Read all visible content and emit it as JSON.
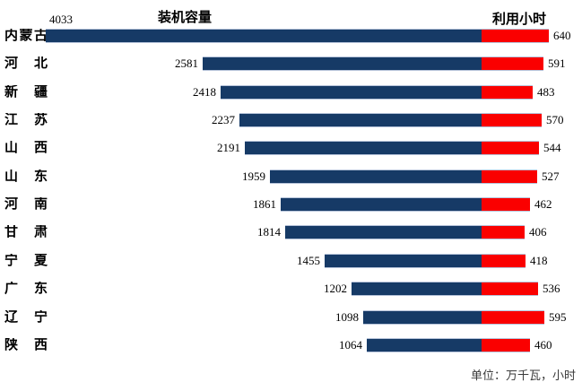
{
  "colors": {
    "capacity_bar": "#163A66",
    "hours_bar": "#FA0000",
    "bar_border": "#B7C4DA"
  },
  "chart_data": {
    "type": "bar",
    "subtype": "tornado-horizontal",
    "title_capacity": "装机容量",
    "title_hours": "利用小时",
    "unit_note": "单位：万千瓦，小时",
    "categories": [
      "内蒙古",
      "河北",
      "新疆",
      "江苏",
      "山西",
      "山东",
      "河南",
      "甘肃",
      "宁夏",
      "广东",
      "辽宁",
      "陕西"
    ],
    "series": [
      {
        "name": "装机容量",
        "color": "#163A66",
        "values": [
          4033,
          2581,
          2418,
          2237,
          2191,
          1959,
          1861,
          1814,
          1455,
          1202,
          1098,
          1064
        ]
      },
      {
        "name": "利用小时",
        "color": "#FA0000",
        "values": [
          640,
          591,
          483,
          570,
          544,
          527,
          462,
          406,
          418,
          536,
          595,
          460
        ]
      }
    ],
    "capacity_axis_range": [
      0,
      4033
    ],
    "hours_axis_range": [
      0,
      700
    ],
    "grid": false,
    "legend": "none",
    "data_labels": true
  }
}
